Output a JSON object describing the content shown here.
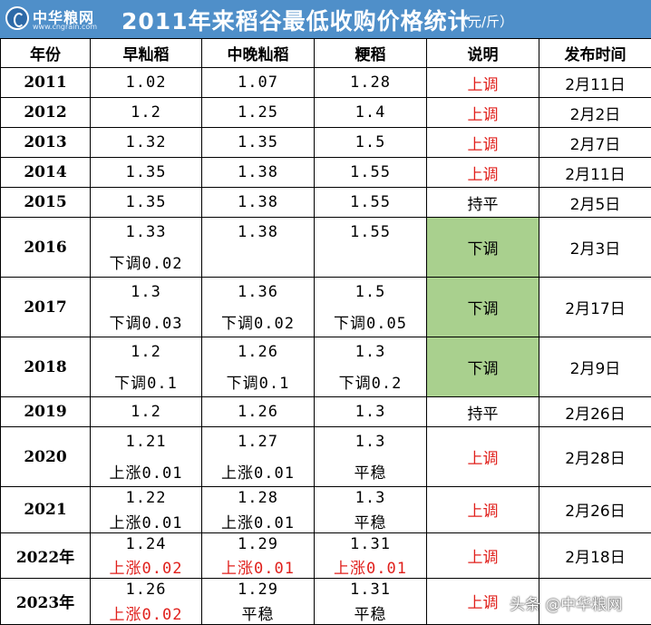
{
  "title_bar": {
    "logo_name": "中华粮网",
    "logo_url": "www.cngrain.com",
    "title": "2011年来稻谷最低收购价格统计",
    "unit": "（元/斤）"
  },
  "headers": [
    "年份",
    "早籼稻",
    "中晚籼稻",
    "粳稻",
    "说明",
    "发布时间"
  ],
  "rows": {
    "y2011": {
      "year": "2011",
      "early": "1.02",
      "mid": "1.07",
      "japonica": "1.28",
      "note": "上调",
      "date": "2月11日"
    },
    "y2012": {
      "year": "2012",
      "early": "1.2",
      "mid": "1.25",
      "japonica": "1.4",
      "note": "上调",
      "date": "2月2日"
    },
    "y2013": {
      "year": "2013",
      "early": "1.32",
      "mid": "1.35",
      "japonica": "1.5",
      "note": "上调",
      "date": "2月7日"
    },
    "y2014": {
      "year": "2014",
      "early": "1.35",
      "mid": "1.38",
      "japonica": "1.55",
      "note": "上调",
      "date": "2月11日"
    },
    "y2015": {
      "year": "2015",
      "early": "1.35",
      "mid": "1.38",
      "japonica": "1.55",
      "note": "持平",
      "date": "2月5日"
    },
    "y2016": {
      "year": "2016",
      "early": "1.33",
      "early_change": "下调0.02",
      "mid": "1.38",
      "mid_change": "",
      "japonica": "1.55",
      "japonica_change": "",
      "note": "下调",
      "date": "2月3日"
    },
    "y2017": {
      "year": "2017",
      "early": "1.3",
      "early_change": "下调0.03",
      "mid": "1.36",
      "mid_change": "下调0.02",
      "japonica": "1.5",
      "japonica_change": "下调0.05",
      "note": "下调",
      "date": "2月17日"
    },
    "y2018": {
      "year": "2018",
      "early": "1.2",
      "early_change": "下调0.1",
      "mid": "1.26",
      "mid_change": "下调0.1",
      "japonica": "1.3",
      "japonica_change": "下调0.2",
      "note": "下调",
      "date": "2月9日"
    },
    "y2019": {
      "year": "2019",
      "early": "1.2",
      "mid": "1.26",
      "japonica": "1.3",
      "note": "持平",
      "date": "2月26日"
    },
    "y2020": {
      "year": "2020",
      "early": "1.21",
      "early_change": "上涨0.01",
      "mid": "1.27",
      "mid_change": "上涨0.01",
      "japonica": "1.3",
      "japonica_change": "平稳",
      "note": "上调",
      "date": "2月28日"
    },
    "y2021": {
      "year": "2021",
      "early": "1.22",
      "early_change": "上涨0.01",
      "mid": "1.28",
      "mid_change": "上涨0.01",
      "japonica": "1.3",
      "japonica_change": "平稳",
      "note": "上调",
      "date": "2月26日"
    },
    "y2022": {
      "year": "2022年",
      "early": "1.24",
      "early_change": "上涨0.02",
      "mid": "1.29",
      "mid_change": "上涨0.01",
      "japonica": "1.31",
      "japonica_change": "上涨0.01",
      "note": "上调",
      "date": "2月18日"
    },
    "y2023": {
      "year": "2023年",
      "early": "1.26",
      "early_change": "上涨0.02",
      "mid": "1.29",
      "mid_change": "平稳",
      "japonica": "1.31",
      "japonica_change": "平稳",
      "note": "上调",
      "date": ""
    }
  },
  "watermark": "头条 @中华粮网",
  "colors": {
    "header_bg": "#4f8fc9",
    "increase_text": "#e0201c",
    "decrease_fill": "#a9d08e"
  }
}
